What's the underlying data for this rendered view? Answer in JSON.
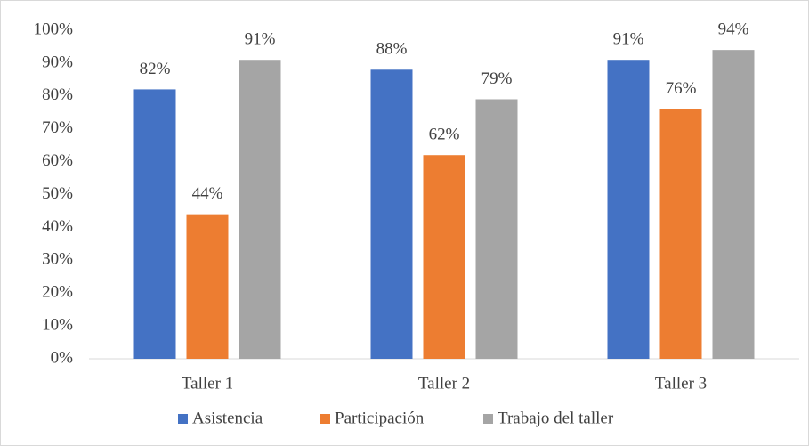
{
  "chart_data": {
    "type": "bar",
    "categories": [
      "Taller 1",
      "Taller 2",
      "Taller 3"
    ],
    "series": [
      {
        "name": "Asistencia",
        "color": "#4472c4",
        "values": [
          82,
          88,
          91
        ],
        "value_labels": [
          "82%",
          "88%",
          "91%"
        ]
      },
      {
        "name": "Participación",
        "color": "#ed7d31",
        "values": [
          44,
          62,
          76
        ],
        "value_labels": [
          "44%",
          "62%",
          "76%"
        ]
      },
      {
        "name": "Trabajo del taller",
        "color": "#a5a5a5",
        "values": [
          91,
          79,
          94
        ],
        "value_labels": [
          "91%",
          "79%",
          "94%"
        ]
      }
    ],
    "ylim": [
      0,
      100
    ],
    "yticks": [
      {
        "value": 0,
        "label": "0%"
      },
      {
        "value": 10,
        "label": "10%"
      },
      {
        "value": 20,
        "label": "20%"
      },
      {
        "value": 30,
        "label": "30%"
      },
      {
        "value": 40,
        "label": "40%"
      },
      {
        "value": 50,
        "label": "50%"
      },
      {
        "value": 60,
        "label": "60%"
      },
      {
        "value": 70,
        "label": "70%"
      },
      {
        "value": 80,
        "label": "80%"
      },
      {
        "value": 90,
        "label": "90%"
      },
      {
        "value": 100,
        "label": "100%"
      }
    ],
    "grid": false,
    "legend": "bottom"
  }
}
